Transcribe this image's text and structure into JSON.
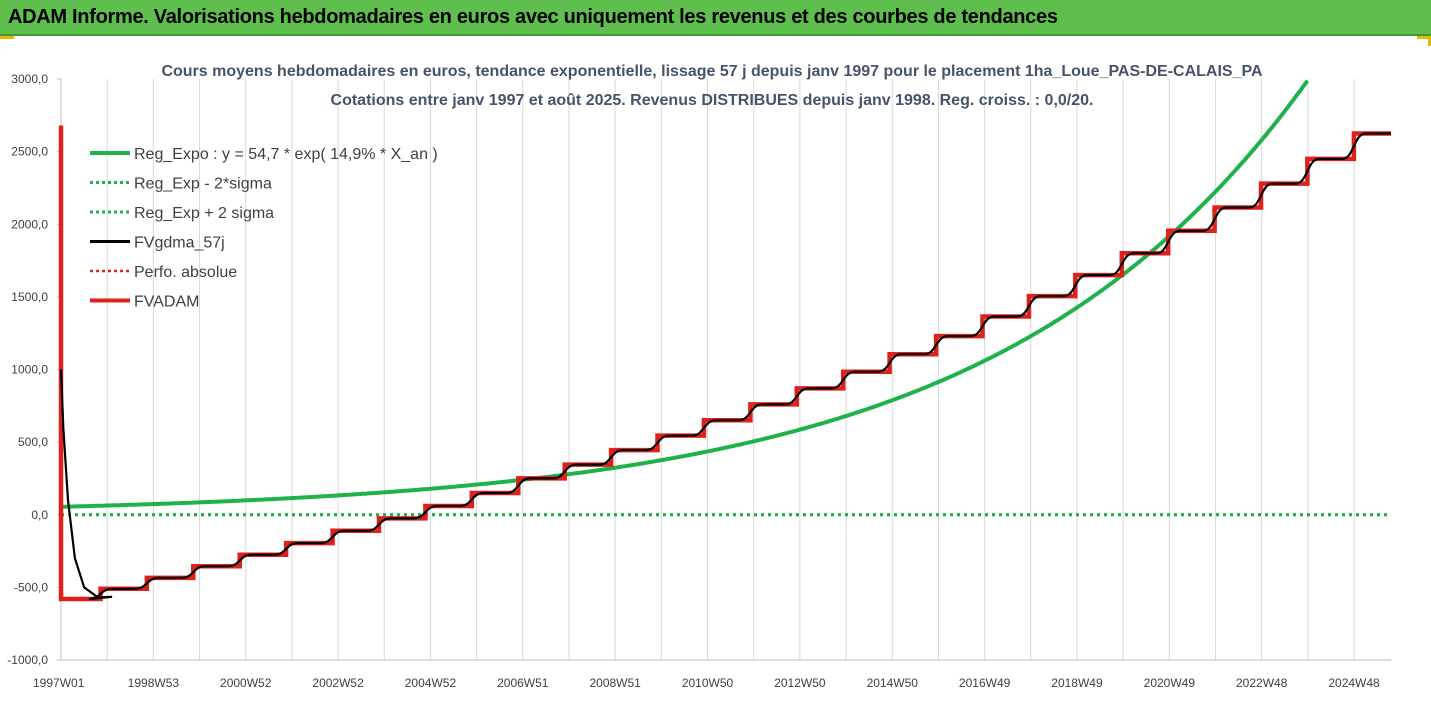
{
  "header": {
    "title": "ADAM Informe. Valorisations hebdomadaires en euros avec uniquement les revenus et des courbes de tendances"
  },
  "colors": {
    "banner": "#5fbf4e",
    "reg_expo": "#1fb24a",
    "sigma": "#1fb24a",
    "fvgdma": "#000000",
    "perfo": "#e0201b",
    "fvadam": "#e0201b",
    "grid": "#d9d9d9"
  },
  "chart_data": {
    "type": "line",
    "title": "Cours moyens hebdomadaires en euros, tendance exponentielle, lissage 57 j depuis janv 1997 pour le placement 1ha_Loue_PAS-DE-CALAIS_PA",
    "subtitle": "Cotations entre janv 1997 et août 2025. Revenus DISTRIBUES depuis janv 1998. Reg. croiss. : 0,0/20.",
    "xlabel": "",
    "ylabel": "",
    "ylim": [
      -1000,
      3000
    ],
    "yticks": [
      "3000,0",
      "2500,0",
      "2000,0",
      "1500,0",
      "1000,0",
      "500,0",
      "0,0",
      "-500,0",
      "-1000,0"
    ],
    "xticks": [
      "1997W01",
      "1998W53",
      "2000W52",
      "2002W52",
      "2004W52",
      "2006W51",
      "2008W51",
      "2010W50",
      "2012W50",
      "2014W50",
      "2016W49",
      "2018W49",
      "2020W49",
      "2022W48",
      "2024W48"
    ],
    "x_range_years": [
      1997.0,
      2025.65
    ],
    "grid": "vertical",
    "legend_position": "top-left",
    "series": [
      {
        "name": "Reg_Expo : y = 54,7 * exp( 14,9% * X_an )",
        "style": "solid-thick",
        "model": {
          "a": 54.7,
          "rate": 0.149,
          "x0": 1997.0
        },
        "x": [
          1997.0,
          2000.0,
          2003.0,
          2006.0,
          2009.0,
          2012.0,
          2015.0,
          2018.0,
          2021.0,
          2024.3
        ],
        "y": [
          55,
          86,
          134,
          209,
          326,
          509,
          795,
          1242,
          1940,
          3000
        ]
      },
      {
        "name": "Reg_Exp - 2*sigma",
        "style": "dotted",
        "x": [
          1997.0,
          2025.65
        ],
        "y": [
          0,
          0
        ]
      },
      {
        "name": "Reg_Exp + 2 sigma",
        "style": "dotted",
        "x": [
          1997.0,
          2025.65
        ],
        "y": [
          0,
          0
        ]
      },
      {
        "name": "FVgdma_57j",
        "style": "solid",
        "x": [
          1997.0,
          1997.05,
          1997.15,
          1997.3,
          1997.5,
          1997.8,
          1998.1
        ],
        "y": [
          1000,
          600,
          100,
          -300,
          -500,
          -570,
          -565
        ]
      },
      {
        "name": "Perfo. absolue",
        "style": "dotted",
        "x": [
          1997.0,
          2025.65
        ],
        "y": [
          0,
          0
        ]
      },
      {
        "name": "FVADAM",
        "style": "solid-thick",
        "x": [
          1997.0,
          1997.0,
          1997.0,
          1998.0,
          1999.0,
          2000.0,
          2001.0,
          2002.0,
          2003.0,
          2004.0,
          2005.0,
          2006.0,
          2007.0,
          2008.0,
          2009.0,
          2010.0,
          2011.0,
          2012.0,
          2013.0,
          2014.0,
          2015.0,
          2016.0,
          2017.0,
          2018.0,
          2019.0,
          2020.0,
          2021.0,
          2022.0,
          2023.0,
          2024.0,
          2025.0,
          2025.65
        ],
        "y": [
          2680,
          -580,
          -580,
          -510,
          -435,
          -355,
          -275,
          -195,
          -110,
          -25,
          60,
          150,
          250,
          345,
          445,
          545,
          650,
          760,
          870,
          985,
          1105,
          1230,
          1365,
          1505,
          1650,
          1800,
          1955,
          2115,
          2280,
          2450,
          2625,
          2625
        ]
      }
    ]
  }
}
